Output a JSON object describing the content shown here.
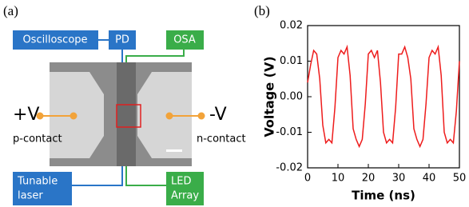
{
  "panel_a": {
    "label": "(a)",
    "boxes": {
      "oscilloscope": "Oscilloscope",
      "pd": "PD",
      "osa": "OSA",
      "laser": [
        "Tunable",
        "laser"
      ],
      "led": [
        "LED",
        "Array"
      ]
    },
    "left_voltage": "+V",
    "left_contact": "p-contact",
    "right_voltage": "-V",
    "right_contact": "n-contact"
  },
  "chart_data": {
    "type": "line",
    "label": "(b)",
    "x_label": "Time (ns)",
    "y_label": "Voltage (V)",
    "x": [
      0,
      1,
      2,
      3,
      4,
      5,
      6,
      7,
      8,
      9,
      10,
      11,
      12,
      13,
      14,
      15,
      16,
      17,
      18,
      19,
      20,
      21,
      22,
      23,
      24,
      25,
      26,
      27,
      28,
      29,
      30,
      31,
      32,
      33,
      34,
      35,
      36,
      37,
      38,
      39,
      40,
      41,
      42,
      43,
      44,
      45,
      46,
      47,
      48,
      49,
      50
    ],
    "series": [
      {
        "color": "#ee1c1c",
        "values": [
          0.004,
          0.009,
          0.013,
          0.012,
          0.005,
          -0.008,
          -0.013,
          -0.012,
          -0.013,
          -0.003,
          0.011,
          0.013,
          0.012,
          0.014,
          0.006,
          -0.009,
          -0.012,
          -0.014,
          -0.012,
          -0.002,
          0.012,
          0.013,
          0.011,
          0.013,
          0.004,
          -0.01,
          -0.013,
          -0.012,
          -0.013,
          -0.003,
          0.012,
          0.012,
          0.014,
          0.011,
          0.005,
          -0.009,
          -0.012,
          -0.014,
          -0.012,
          -0.002,
          0.011,
          0.013,
          0.012,
          0.014,
          0.006,
          -0.01,
          -0.013,
          -0.012,
          -0.013,
          -0.004,
          0.01
        ]
      }
    ],
    "xlim": [
      0,
      50
    ],
    "ylim": [
      -0.02,
      0.02
    ],
    "xticks": [
      0,
      10,
      20,
      30,
      40,
      50
    ],
    "yticks": [
      -0.02,
      -0.01,
      {
        "value": 0,
        "label": "0.00"
      },
      0.01,
      0.02
    ]
  }
}
